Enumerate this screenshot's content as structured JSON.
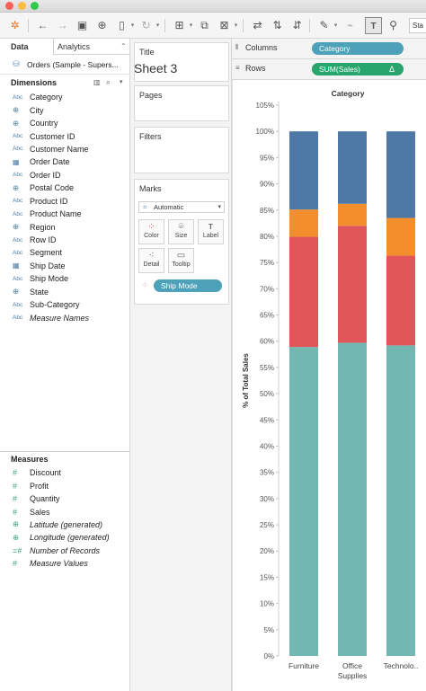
{
  "toolbar": {
    "icons": [
      "tableau-logo-icon",
      "undo-icon",
      "redo-icon",
      "save-icon",
      "new-data-source-icon",
      "pause-updates-icon",
      "refresh-icon",
      "new-worksheet-icon",
      "duplicate-sheet-icon",
      "clear-sheet-icon",
      "swap-axes-icon",
      "sort-ascending-icon",
      "sort-descending-icon",
      "highlight-icon",
      "group-icon",
      "show-labels-icon",
      "fix-axes-icon"
    ],
    "right_text": "Sta"
  },
  "data_pane": {
    "tab_data": "Data",
    "tab_analytics": "Analytics",
    "tab_analytics_arrow": "⌃",
    "source": "Orders (Sample - Supers...",
    "dimensions_title": "Dimensions",
    "dimensions": [
      {
        "type": "Abc",
        "name": "Category",
        "italic": false
      },
      {
        "type": "globe",
        "name": "City",
        "italic": false
      },
      {
        "type": "globe",
        "name": "Country",
        "italic": false
      },
      {
        "type": "Abc",
        "name": "Customer ID",
        "italic": false
      },
      {
        "type": "Abc",
        "name": "Customer Name",
        "italic": false
      },
      {
        "type": "calendar",
        "name": "Order Date",
        "italic": false
      },
      {
        "type": "Abc",
        "name": "Order ID",
        "italic": false
      },
      {
        "type": "globe",
        "name": "Postal Code",
        "italic": false
      },
      {
        "type": "Abc",
        "name": "Product ID",
        "italic": false
      },
      {
        "type": "Abc",
        "name": "Product Name",
        "italic": false
      },
      {
        "type": "globe",
        "name": "Region",
        "italic": false
      },
      {
        "type": "Abc",
        "name": "Row ID",
        "italic": false
      },
      {
        "type": "Abc",
        "name": "Segment",
        "italic": false
      },
      {
        "type": "calendar",
        "name": "Ship Date",
        "italic": false
      },
      {
        "type": "Abc",
        "name": "Ship Mode",
        "italic": false
      },
      {
        "type": "globe",
        "name": "State",
        "italic": false
      },
      {
        "type": "Abc",
        "name": "Sub-Category",
        "italic": false
      },
      {
        "type": "Abc",
        "name": "Measure Names",
        "italic": true
      }
    ],
    "measures_title": "Measures",
    "measures": [
      {
        "type": "#",
        "name": "Discount",
        "italic": false
      },
      {
        "type": "#",
        "name": "Profit",
        "italic": false
      },
      {
        "type": "#",
        "name": "Quantity",
        "italic": false
      },
      {
        "type": "#",
        "name": "Sales",
        "italic": false
      },
      {
        "type": "globe",
        "name": "Latitude (generated)",
        "italic": true
      },
      {
        "type": "globe",
        "name": "Longitude (generated)",
        "italic": true
      },
      {
        "type": "=#",
        "name": "Number of Records",
        "italic": true
      },
      {
        "type": "#",
        "name": "Measure Values",
        "italic": true
      }
    ]
  },
  "cards": {
    "title_label": "Title",
    "sheet_title": "Sheet 3",
    "pages_label": "Pages",
    "filters_label": "Filters",
    "marks_label": "Marks",
    "mark_type": "Automatic",
    "color_label": "Color",
    "size_label": "Size",
    "label_label": "Label",
    "detail_label": "Detail",
    "tooltip_label": "Tooltip",
    "color_pill": "Ship Mode"
  },
  "shelves": {
    "columns_label": "Columns",
    "columns_pill": "Category",
    "rows_label": "Rows",
    "rows_pill": "SUM(Sales)",
    "rows_pill_badge": "Δ"
  },
  "colors": {
    "dimension_pill": "#4da1b8",
    "measure_pill": "#27a56d"
  },
  "chart_data": {
    "type": "bar",
    "stacked": true,
    "title": "Category",
    "xlabel": "",
    "ylabel": "% of Total Sales",
    "categories": [
      "Furniture",
      "Office Supplies",
      "Technolo.."
    ],
    "ylim": [
      0,
      105
    ],
    "yticks": [
      "0%",
      "5%",
      "10%",
      "15%",
      "20%",
      "25%",
      "30%",
      "35%",
      "40%",
      "45%",
      "50%",
      "55%",
      "60%",
      "65%",
      "70%",
      "75%",
      "80%",
      "85%",
      "90%",
      "95%",
      "100%",
      "105%"
    ],
    "series": [
      {
        "color": "#72b7b2",
        "values": [
          58.9,
          59.7,
          59.2
        ]
      },
      {
        "color": "#e15759",
        "values": [
          21.0,
          22.3,
          17.1
        ]
      },
      {
        "color": "#f28e2b",
        "values": [
          5.2,
          4.2,
          7.2
        ]
      },
      {
        "color": "#4e79a7",
        "values": [
          14.9,
          13.8,
          16.5
        ]
      }
    ]
  }
}
